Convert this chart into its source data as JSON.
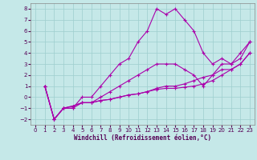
{
  "xlabel": "Windchill (Refroidissement éolien,°C)",
  "background_color": "#c5e8e8",
  "grid_color": "#9ecece",
  "line_color": "#aa00aa",
  "xlim": [
    -0.5,
    23.5
  ],
  "ylim": [
    -2.5,
    8.5
  ],
  "xticks": [
    0,
    1,
    2,
    3,
    4,
    5,
    6,
    7,
    8,
    9,
    10,
    11,
    12,
    13,
    14,
    15,
    16,
    17,
    18,
    19,
    20,
    21,
    22,
    23
  ],
  "yticks": [
    -2,
    -1,
    0,
    1,
    2,
    3,
    4,
    5,
    6,
    7,
    8
  ],
  "series": [
    {
      "x": [
        1,
        2,
        3,
        4,
        5,
        6,
        7,
        8,
        9,
        10,
        11,
        12,
        13,
        14,
        15,
        16,
        17,
        18,
        19,
        20,
        21,
        22,
        23
      ],
      "y": [
        1,
        -2,
        -1,
        -1,
        0,
        0,
        1,
        2,
        3,
        3.5,
        5,
        6,
        8,
        7.5,
        8,
        7,
        6,
        4,
        3,
        3.5,
        3,
        4,
        5
      ]
    },
    {
      "x": [
        1,
        2,
        3,
        4,
        5,
        6,
        7,
        8,
        9,
        10,
        11,
        12,
        13,
        14,
        15,
        16,
        17,
        18,
        19,
        20,
        21,
        22,
        23
      ],
      "y": [
        1,
        -2,
        -1,
        -1,
        -0.5,
        -0.5,
        0,
        0.5,
        1,
        1.5,
        2,
        2.5,
        3,
        3,
        3,
        2.5,
        2,
        1,
        2,
        3,
        3,
        3.5,
        5
      ]
    },
    {
      "x": [
        1,
        2,
        3,
        4,
        5,
        6,
        7,
        8,
        9,
        10,
        11,
        12,
        13,
        14,
        15,
        16,
        17,
        18,
        19,
        20,
        21,
        22,
        23
      ],
      "y": [
        1,
        -2,
        -1,
        -0.8,
        -0.5,
        -0.5,
        -0.3,
        -0.2,
        0,
        0.2,
        0.3,
        0.5,
        0.8,
        1,
        1,
        1.2,
        1.5,
        1.8,
        2,
        2.5,
        2.5,
        3,
        4
      ]
    },
    {
      "x": [
        1,
        2,
        3,
        4,
        5,
        6,
        7,
        8,
        9,
        10,
        11,
        12,
        13,
        14,
        15,
        16,
        17,
        18,
        19,
        20,
        21,
        22,
        23
      ],
      "y": [
        1,
        -2,
        -1,
        -0.8,
        -0.5,
        -0.5,
        -0.3,
        -0.2,
        0,
        0.2,
        0.3,
        0.5,
        0.7,
        0.8,
        0.8,
        0.9,
        1,
        1.2,
        1.5,
        2,
        2.5,
        3,
        4
      ]
    }
  ],
  "tick_fontsize": 5,
  "xlabel_fontsize": 5.5,
  "spine_color": "#888888"
}
